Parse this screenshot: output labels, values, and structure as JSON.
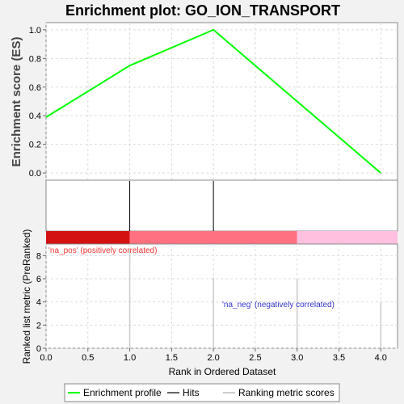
{
  "chart_data": {
    "type": "line",
    "title": "Enrichment plot: GO_ION_TRANSPORT",
    "es_panel": {
      "ylabel": "Enrichment score (ES)",
      "ylim": [
        -0.05,
        1.05
      ],
      "yticks": [
        "0.0",
        "0.2",
        "0.4",
        "0.6",
        "0.8",
        "1.0"
      ],
      "series": [
        {
          "name": "Enrichment profile",
          "color": "#00ff00",
          "x": [
            0,
            1,
            2,
            3,
            4
          ],
          "y": [
            0.39,
            0.75,
            1.0,
            0.5,
            0.0
          ]
        }
      ]
    },
    "hits": {
      "positions": [
        1,
        2
      ]
    },
    "color_bar": {
      "segments": [
        {
          "from": 0,
          "to": 1,
          "color": "#d41111"
        },
        {
          "from": 1,
          "to": 3,
          "color": "#ff7080"
        },
        {
          "from": 3,
          "to": 4.2,
          "color": "#ffc0e0"
        }
      ]
    },
    "metric_panel": {
      "ylabel": "Ranked list metric (PreRanked)",
      "ylim": [
        0,
        9
      ],
      "yticks": [
        "0",
        "2",
        "4",
        "6",
        "8"
      ],
      "bars": {
        "x": [
          1,
          2,
          3,
          4
        ],
        "y": [
          8.5,
          6.1,
          6.0,
          4.0
        ]
      },
      "annotations": {
        "pos": "'na_pos' (positively correlated)",
        "neg": "'na_neg' (negatively correlated)"
      },
      "pos_color": "#ee3333",
      "neg_color": "#3333cc"
    },
    "x_axis": {
      "label": "Rank in Ordered Dataset",
      "xlim": [
        0,
        4.2
      ],
      "ticks": [
        "0.0",
        "0.5",
        "1.0",
        "1.5",
        "2.0",
        "2.5",
        "3.0",
        "3.5",
        "4.0"
      ]
    },
    "legend": {
      "placement": "bottom",
      "items": [
        {
          "label": "Enrichment profile",
          "color": "#00ff00"
        },
        {
          "label": "Hits",
          "color": "#666666"
        },
        {
          "label": "Ranking metric scores",
          "color": "#cccccc"
        }
      ]
    }
  }
}
